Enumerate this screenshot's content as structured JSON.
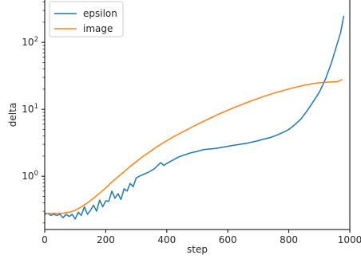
{
  "chart_data": {
    "type": "line",
    "xlabel": "step",
    "ylabel": "delta",
    "xlim": [
      0,
      1000
    ],
    "ylim": [
      0.16,
      430
    ],
    "yscale": "log",
    "x_ticks": [
      0,
      200,
      400,
      600,
      800,
      1000
    ],
    "x_tick_labels": [
      "0",
      "200",
      "400",
      "600",
      "800",
      "1000"
    ],
    "y_ticks": [
      1,
      10,
      100
    ],
    "y_tick_labels": [
      "10^0",
      "10^1",
      "10^2"
    ],
    "legend": {
      "placement": "top-left"
    },
    "series": [
      {
        "name": "epsilon",
        "color": "#1f77b4",
        "x": [
          0,
          10,
          20,
          30,
          40,
          50,
          60,
          70,
          80,
          90,
          100,
          110,
          120,
          130,
          140,
          150,
          160,
          170,
          180,
          190,
          200,
          210,
          220,
          230,
          240,
          250,
          260,
          270,
          280,
          290,
          300,
          320,
          340,
          360,
          380,
          390,
          400,
          420,
          440,
          460,
          480,
          500,
          520,
          540,
          560,
          580,
          600,
          620,
          640,
          660,
          680,
          700,
          720,
          740,
          760,
          780,
          800,
          820,
          840,
          860,
          880,
          900,
          920,
          940,
          960,
          970,
          980
        ],
        "values": [
          0.27,
          0.28,
          0.26,
          0.27,
          0.26,
          0.27,
          0.24,
          0.27,
          0.25,
          0.27,
          0.23,
          0.29,
          0.26,
          0.35,
          0.27,
          0.31,
          0.37,
          0.3,
          0.44,
          0.35,
          0.43,
          0.42,
          0.6,
          0.47,
          0.55,
          0.45,
          0.65,
          0.6,
          0.78,
          0.7,
          0.95,
          1.05,
          1.15,
          1.3,
          1.6,
          1.45,
          1.55,
          1.75,
          1.95,
          2.1,
          2.25,
          2.35,
          2.5,
          2.55,
          2.6,
          2.7,
          2.8,
          2.9,
          3.0,
          3.1,
          3.25,
          3.4,
          3.6,
          3.8,
          4.1,
          4.5,
          5.0,
          5.9,
          7.2,
          9.5,
          13,
          18,
          28,
          50,
          100,
          140,
          250
        ]
      },
      {
        "name": "image",
        "color": "#ff7f0e",
        "x": [
          0,
          20,
          40,
          60,
          80,
          100,
          120,
          140,
          160,
          180,
          200,
          220,
          240,
          260,
          280,
          300,
          320,
          340,
          360,
          380,
          400,
          420,
          440,
          460,
          480,
          500,
          520,
          540,
          560,
          580,
          600,
          620,
          640,
          660,
          680,
          700,
          720,
          740,
          760,
          780,
          800,
          820,
          840,
          860,
          880,
          900,
          920,
          940,
          960,
          975
        ],
        "values": [
          0.28,
          0.28,
          0.28,
          0.28,
          0.29,
          0.31,
          0.35,
          0.4,
          0.47,
          0.56,
          0.67,
          0.82,
          0.98,
          1.17,
          1.4,
          1.65,
          1.95,
          2.25,
          2.6,
          3.0,
          3.4,
          3.85,
          4.3,
          4.8,
          5.35,
          5.95,
          6.6,
          7.3,
          8.05,
          8.85,
          9.7,
          10.6,
          11.5,
          12.5,
          13.5,
          14.6,
          15.7,
          16.8,
          17.9,
          19.0,
          20.1,
          21.2,
          22.3,
          23.3,
          24.2,
          24.9,
          25.4,
          25.7,
          25.8,
          28.0
        ]
      }
    ]
  }
}
